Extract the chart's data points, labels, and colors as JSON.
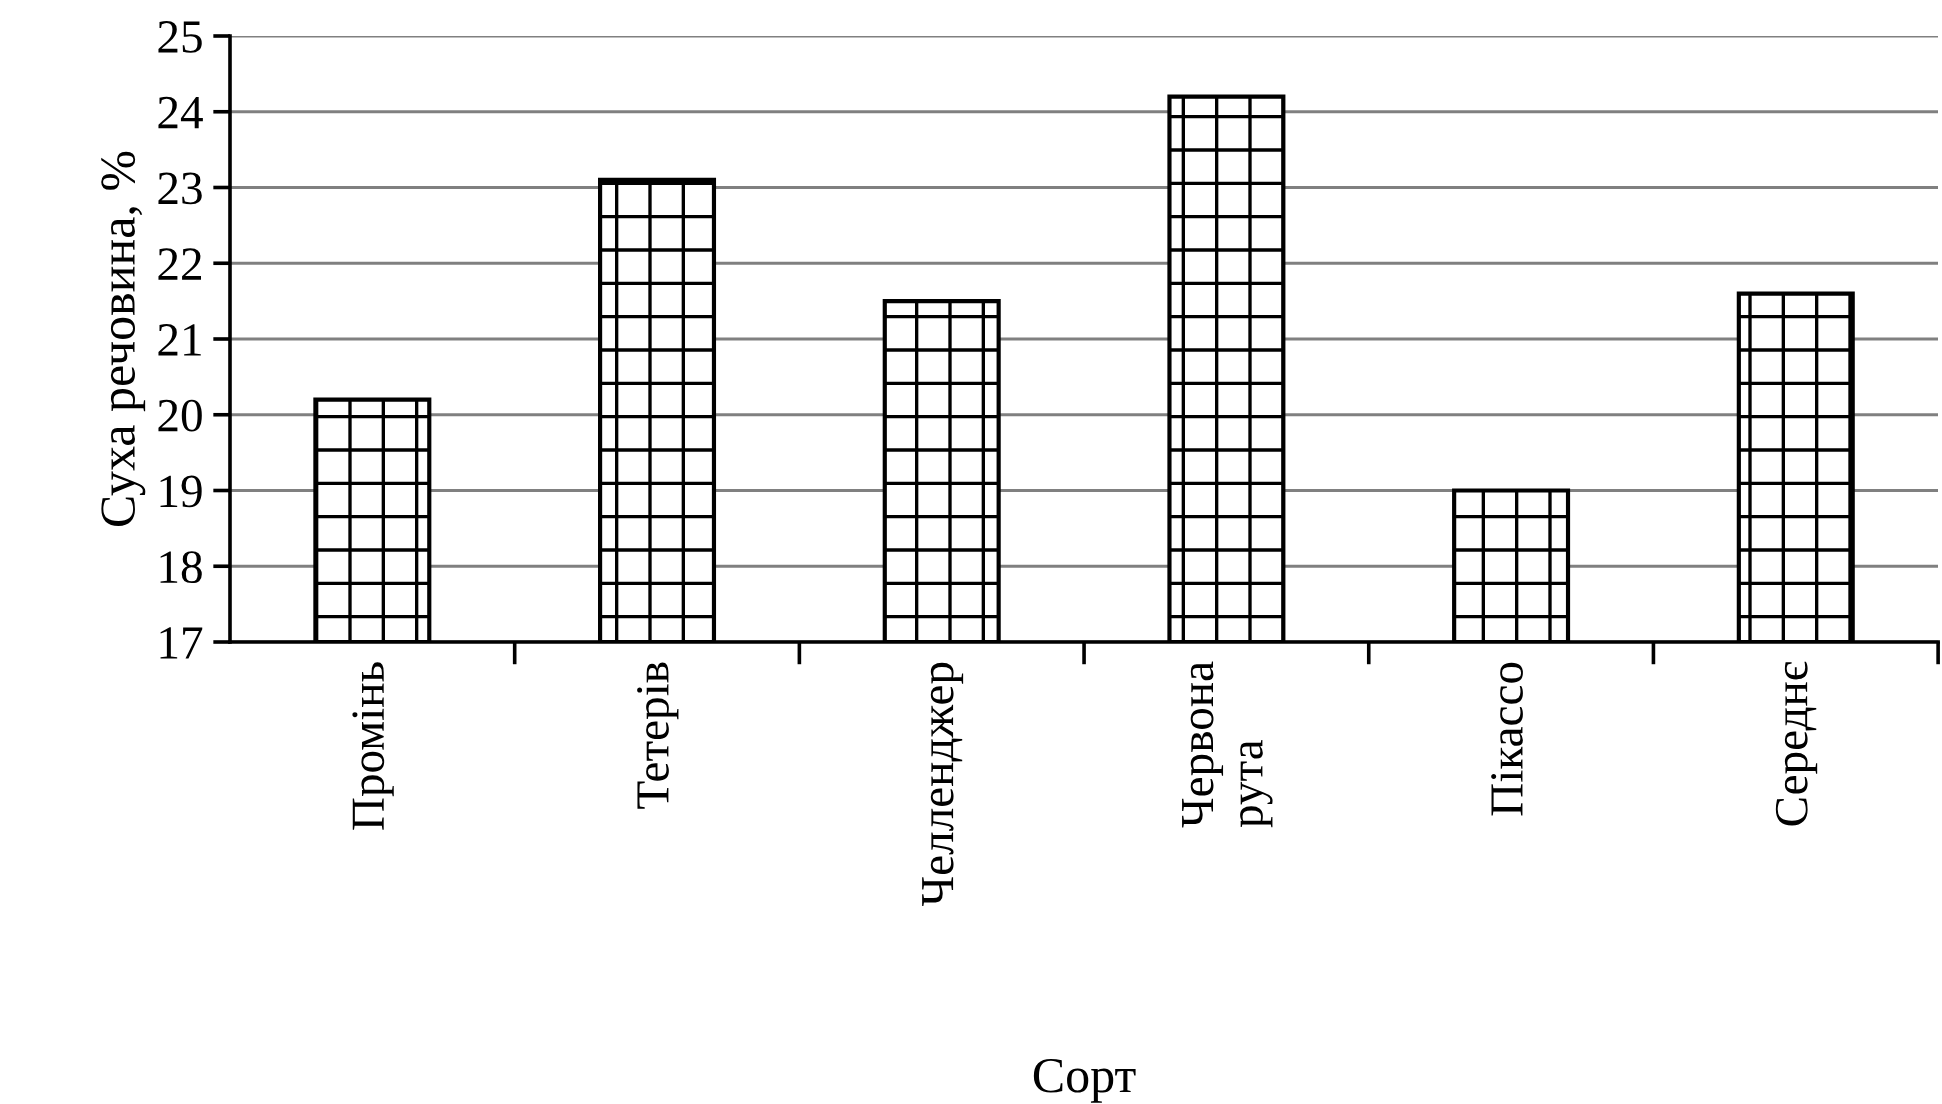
{
  "chart_data": {
    "type": "bar",
    "xlabel": "Сорт",
    "ylabel": "Суха речовина, %",
    "categories": [
      "Промінь",
      "Тетерів",
      "Челленджер",
      "Червона\nрута",
      "Пікассо",
      "Середнє"
    ],
    "values": [
      20.2,
      23.1,
      21.5,
      24.2,
      19.0,
      21.6
    ],
    "color": "#000000",
    "ylim": [
      17,
      25
    ],
    "yticks": [
      17,
      18,
      19,
      20,
      21,
      22,
      23,
      24,
      25
    ],
    "grid": "y",
    "legend": false
  }
}
